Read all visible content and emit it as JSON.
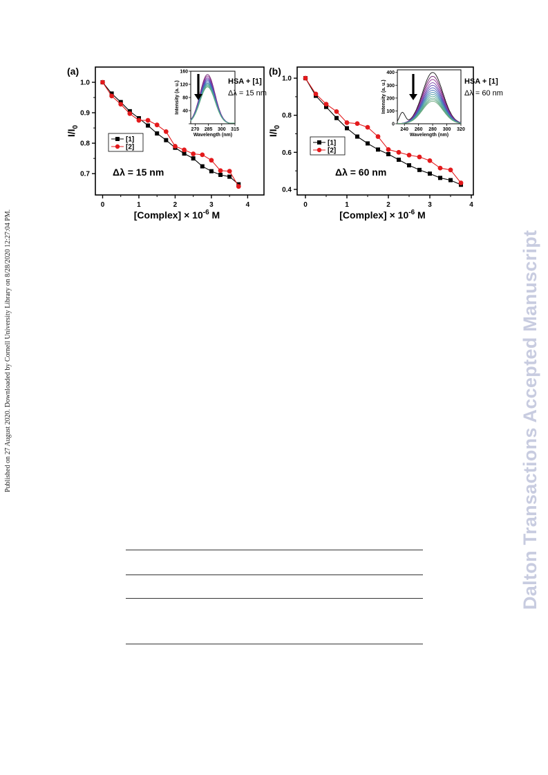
{
  "side_note": "Published on 27 August 2020. Downloaded by Cornell University Library on 8/28/2020 12:27:04 PM.",
  "watermark": "Dalton Transactions Accepted Manuscript",
  "chart_data": [
    {
      "type": "line",
      "panel_label": "(a)",
      "xlabel_main": "[Complex] × 10",
      "xlabel_exp": "-6",
      "xlabel_unit": " M",
      "ylabel_main": "I/I",
      "ylabel_sub": "0",
      "xlim": [
        -0.2,
        4.45
      ],
      "ylim": [
        0.63,
        1.05
      ],
      "xticks": [
        0,
        1,
        2,
        3,
        4
      ],
      "yticks": [
        0.7,
        0.8,
        0.9,
        1.0
      ],
      "ytick_labels": [
        "0.7",
        "0.8",
        "0.9",
        "1.0"
      ],
      "annotation": "Δλ = 15 nm",
      "legend_position": "middle-left",
      "series": [
        {
          "name": "[1]",
          "color": "#000000",
          "marker": "square",
          "x": [
            0,
            0.25,
            0.5,
            0.75,
            1.0,
            1.25,
            1.5,
            1.75,
            2.0,
            2.25,
            2.5,
            2.75,
            3.0,
            3.25,
            3.5,
            3.75
          ],
          "y": [
            1.0,
            0.963,
            0.935,
            0.905,
            0.882,
            0.858,
            0.832,
            0.81,
            0.785,
            0.766,
            0.75,
            0.724,
            0.708,
            0.696,
            0.69,
            0.665
          ]
        },
        {
          "name": "[2]",
          "color": "#e31a1c",
          "marker": "circle",
          "x": [
            0,
            0.25,
            0.5,
            0.75,
            1.0,
            1.25,
            1.5,
            1.75,
            2.0,
            2.25,
            2.5,
            2.75,
            3.0,
            3.25,
            3.5,
            3.75
          ],
          "y": [
            1.0,
            0.955,
            0.928,
            0.897,
            0.875,
            0.875,
            0.86,
            0.838,
            0.79,
            0.778,
            0.765,
            0.762,
            0.744,
            0.71,
            0.708,
            0.658
          ]
        }
      ],
      "inset": {
        "type": "line",
        "xlabel": "Wavelength (nm)",
        "ylabel": "Intensity (a. u.)",
        "xlim": [
          265,
          315
        ],
        "ylim": [
          0,
          160
        ],
        "xticks": [
          270,
          285,
          300,
          315
        ],
        "yticks": [
          0,
          40,
          80,
          120,
          160
        ],
        "ytick_labels": [
          "",
          "40",
          "80",
          "120",
          "160"
        ],
        "label": "HSA + [1]",
        "annotation": "Δλ = 15 nm",
        "peak_x": 284,
        "peaks": [
          150,
          145,
          140,
          136,
          132,
          128,
          124,
          121,
          118,
          115,
          112
        ],
        "colors": [
          "#6a1b6a",
          "#8e2a8e",
          "#7a3fa8",
          "#5a3fb0",
          "#4a55b8",
          "#3d6fb8",
          "#3f86b0",
          "#4a9aa6",
          "#4fa896",
          "#58a889",
          "#60a884"
        ]
      }
    },
    {
      "type": "line",
      "panel_label": "(b)",
      "xlabel_main": "[Complex] × 10",
      "xlabel_exp": "-6",
      "xlabel_unit": " M",
      "ylabel_main": "I/I",
      "ylabel_sub": "0",
      "xlim": [
        -0.2,
        4.05
      ],
      "ylim": [
        0.37,
        1.06
      ],
      "xticks": [
        0,
        1,
        2,
        3,
        4
      ],
      "yticks": [
        0.4,
        0.6,
        0.8,
        1.0
      ],
      "ytick_labels": [
        "0.4",
        "0.6",
        "0.8",
        "1.0"
      ],
      "annotation": "Δλ = 60 nm",
      "legend_position": "middle-left",
      "series": [
        {
          "name": "[1]",
          "color": "#000000",
          "marker": "square",
          "x": [
            0,
            0.25,
            0.5,
            0.75,
            1.0,
            1.25,
            1.5,
            1.75,
            2.0,
            2.25,
            2.5,
            2.75,
            3.0,
            3.25,
            3.5,
            3.75
          ],
          "y": [
            1.0,
            0.905,
            0.845,
            0.785,
            0.73,
            0.685,
            0.648,
            0.615,
            0.59,
            0.56,
            0.53,
            0.505,
            0.485,
            0.462,
            0.45,
            0.425
          ]
        },
        {
          "name": "[2]",
          "color": "#e31a1c",
          "marker": "circle",
          "x": [
            0,
            0.25,
            0.5,
            0.75,
            1.0,
            1.25,
            1.5,
            1.75,
            2.0,
            2.25,
            2.5,
            2.75,
            3.0,
            3.25,
            3.5,
            3.75
          ],
          "y": [
            1.0,
            0.915,
            0.86,
            0.82,
            0.76,
            0.755,
            0.735,
            0.685,
            0.615,
            0.6,
            0.585,
            0.575,
            0.555,
            0.515,
            0.505,
            0.435
          ]
        }
      ],
      "inset": {
        "type": "line",
        "xlabel": "Wavelength (nm)",
        "ylabel": "Intensity (a. u.)",
        "xlim": [
          230,
          320
        ],
        "ylim": [
          0,
          420
        ],
        "xticks": [
          240,
          260,
          280,
          300,
          320
        ],
        "yticks": [
          0,
          100,
          200,
          300,
          400
        ],
        "ytick_labels": [
          "0",
          "100",
          "200",
          "300",
          "400"
        ],
        "label": "HSA + [1]",
        "annotation": "Δλ = 60 nm",
        "peak_x": 280,
        "peaks": [
          400,
          370,
          345,
          320,
          300,
          280,
          262,
          245,
          230,
          215,
          200,
          188,
          176
        ],
        "colors": [
          "#111111",
          "#6a1b6a",
          "#8e2a8e",
          "#7a3fa8",
          "#5a3fb0",
          "#4a55b8",
          "#3d6fb8",
          "#3f86b0",
          "#4a9aa6",
          "#4fa896",
          "#58a889",
          "#60a884",
          "#6aa87e"
        ]
      }
    }
  ]
}
